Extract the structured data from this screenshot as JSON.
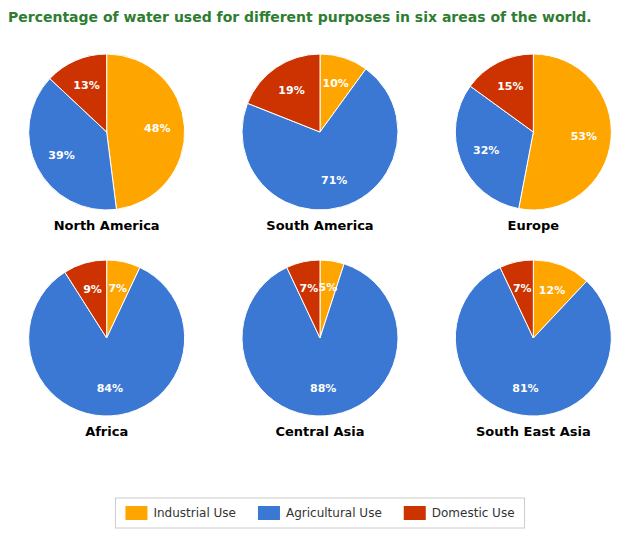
{
  "title": "Percentage of water used for different purposes in six areas of the world.",
  "chart_data": [
    {
      "type": "pie",
      "title": "North America",
      "categories": [
        "Industrial Use",
        "Agricultural Use",
        "Domestic Use"
      ],
      "values": [
        48,
        39,
        13
      ],
      "value_labels": [
        "48%",
        "39%",
        "13%"
      ],
      "colors": [
        "#FFA500",
        "#3A78D4",
        "#CC3300"
      ],
      "data_labels": true
    },
    {
      "type": "pie",
      "title": "South America",
      "categories": [
        "Industrial Use",
        "Agricultural Use",
        "Domestic Use"
      ],
      "values": [
        10,
        71,
        19
      ],
      "value_labels": [
        "10%",
        "71%",
        "19%"
      ],
      "colors": [
        "#FFA500",
        "#3A78D4",
        "#CC3300"
      ],
      "data_labels": true
    },
    {
      "type": "pie",
      "title": "Europe",
      "categories": [
        "Industrial Use",
        "Agricultural Use",
        "Domestic Use"
      ],
      "values": [
        53,
        32,
        15
      ],
      "value_labels": [
        "53%",
        "32%",
        "15%"
      ],
      "colors": [
        "#FFA500",
        "#3A78D4",
        "#CC3300"
      ],
      "data_labels": true
    },
    {
      "type": "pie",
      "title": "Africa",
      "categories": [
        "Industrial Use",
        "Agricultural Use",
        "Domestic Use"
      ],
      "values": [
        7,
        84,
        9
      ],
      "value_labels": [
        "7%",
        "84%",
        "9%"
      ],
      "colors": [
        "#FFA500",
        "#3A78D4",
        "#CC3300"
      ],
      "data_labels": true
    },
    {
      "type": "pie",
      "title": "Central Asia",
      "categories": [
        "Industrial Use",
        "Agricultural Use",
        "Domestic Use"
      ],
      "values": [
        5,
        88,
        7
      ],
      "value_labels": [
        "5%",
        "88%",
        "7%"
      ],
      "colors": [
        "#FFA500",
        "#3A78D4",
        "#CC3300"
      ],
      "data_labels": true
    },
    {
      "type": "pie",
      "title": "South East Asia",
      "categories": [
        "Industrial Use",
        "Agricultural Use",
        "Domestic Use"
      ],
      "values": [
        12,
        81,
        7
      ],
      "value_labels": [
        "12%",
        "81%",
        "7%"
      ],
      "colors": [
        "#FFA500",
        "#3A78D4",
        "#CC3300"
      ],
      "data_labels": true
    }
  ]
}
